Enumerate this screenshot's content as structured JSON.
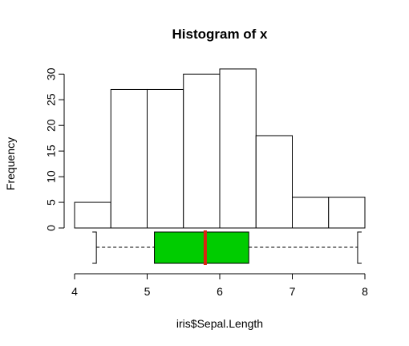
{
  "chart_data": {
    "type": "histogram",
    "title": "Histogram of x",
    "xlabel": "iris$Sepal.Length",
    "ylabel": "Frequency",
    "bins": [
      {
        "start": 4.0,
        "end": 4.5,
        "count": 5
      },
      {
        "start": 4.5,
        "end": 5.0,
        "count": 27
      },
      {
        "start": 5.0,
        "end": 5.5,
        "count": 27
      },
      {
        "start": 5.5,
        "end": 6.0,
        "count": 30
      },
      {
        "start": 6.0,
        "end": 6.5,
        "count": 31
      },
      {
        "start": 6.5,
        "end": 7.0,
        "count": 18
      },
      {
        "start": 7.0,
        "end": 7.5,
        "count": 6
      },
      {
        "start": 7.5,
        "end": 8.0,
        "count": 6
      }
    ],
    "xlim": [
      4,
      8
    ],
    "ylim": [
      0,
      31
    ],
    "x_ticks": [
      "4",
      "5",
      "6",
      "7",
      "8"
    ],
    "y_ticks": [
      "0",
      "5",
      "10",
      "15",
      "20",
      "25",
      "30"
    ],
    "boxplot": {
      "min": 4.3,
      "q1": 5.1,
      "median": 5.8,
      "q3": 6.4,
      "max": 7.9,
      "box_color": "#00CC00",
      "median_color": "#DD2211"
    },
    "bar_fill": "#ffffff",
    "bar_stroke": "#000000"
  }
}
